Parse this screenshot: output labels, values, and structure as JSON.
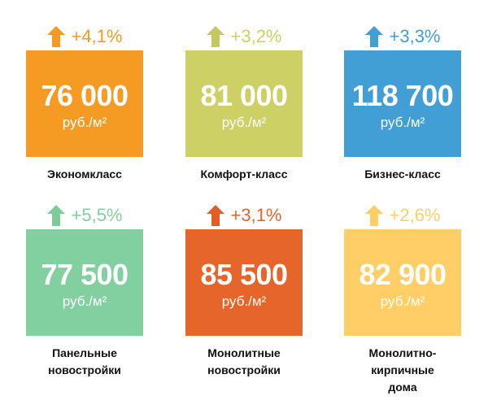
{
  "cards": [
    {
      "change": "+4,1%",
      "price": "76 000",
      "unit": "руб./м²",
      "label": "Экономкласс",
      "color": "#F59A22",
      "arrow_color": "#F59A22",
      "trend": "up"
    },
    {
      "change": "+3,2%",
      "price": "81 000",
      "unit": "руб./м²",
      "label": "Комфорт-класс",
      "color": "#CCD065",
      "arrow_color": "#C3C95E",
      "trend": "up"
    },
    {
      "change": "+3,3%",
      "price": "118 700",
      "unit": "руб./м²",
      "label": "Бизнес-класс",
      "color": "#419FD6",
      "arrow_color": "#419FD6",
      "trend": "up"
    },
    {
      "change": "+5,5%",
      "price": "77 500",
      "unit": "руб./м²",
      "label": "Панельные\nновостройки",
      "color": "#82CFA0",
      "arrow_color": "#7CCB98",
      "trend": "up"
    },
    {
      "change": "+3,1%",
      "price": "85 500",
      "unit": "руб./м²",
      "label": "Монолитные\nновостройки",
      "color": "#E5652B",
      "arrow_color": "#E05F28",
      "trend": "up"
    },
    {
      "change": "+2,6%",
      "price": "82 900",
      "unit": "руб./м²",
      "label": "Монолитно-\nкирпичные\nдома",
      "color": "#FFCE66",
      "arrow_color": "#FFCE66",
      "trend": "up"
    }
  ]
}
